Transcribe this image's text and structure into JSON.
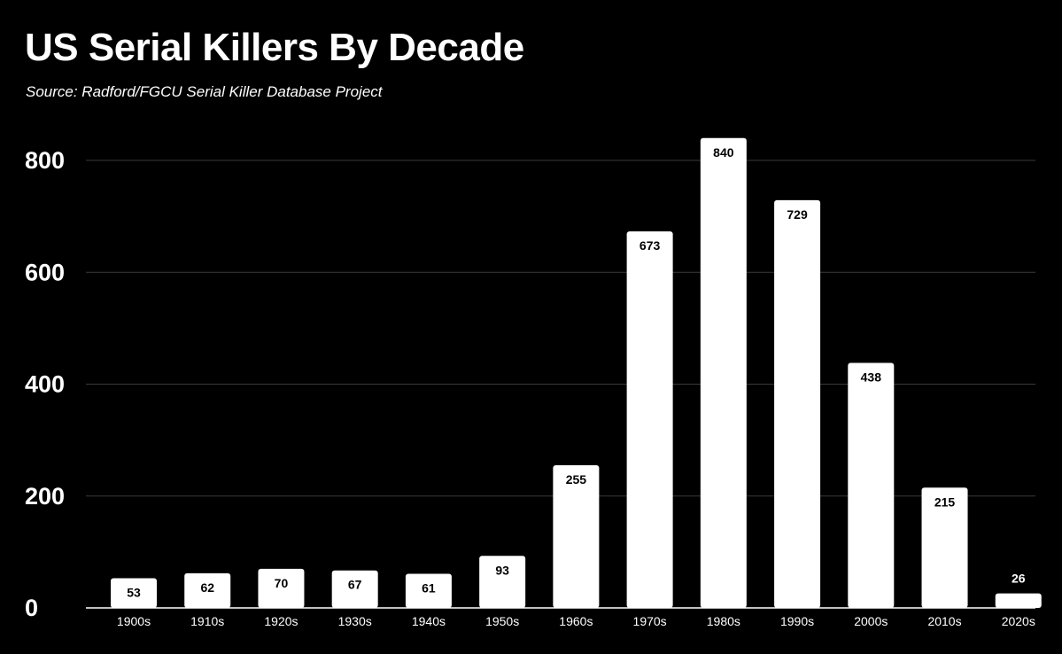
{
  "chart_data": {
    "type": "bar",
    "title": "US Serial Killers By Decade",
    "subtitle": "Source: Radford/FGCU Serial Killer Database Project",
    "xlabel": "",
    "ylabel": "",
    "categories": [
      "1900s",
      "1910s",
      "1920s",
      "1930s",
      "1940s",
      "1950s",
      "1960s",
      "1970s",
      "1980s",
      "1990s",
      "2000s",
      "2010s",
      "2020s"
    ],
    "values": [
      53,
      62,
      70,
      67,
      61,
      93,
      255,
      673,
      840,
      729,
      438,
      215,
      26
    ],
    "ylim": [
      0,
      840
    ],
    "yticks": [
      0,
      200,
      400,
      600,
      800
    ],
    "grid": true,
    "legend": "none",
    "colors": {
      "background": "#000000",
      "bar": "#ffffff",
      "text": "#ffffff",
      "label_inside": "#000000",
      "gridline": "#3a3a3a",
      "axis": "#ffffff"
    }
  }
}
